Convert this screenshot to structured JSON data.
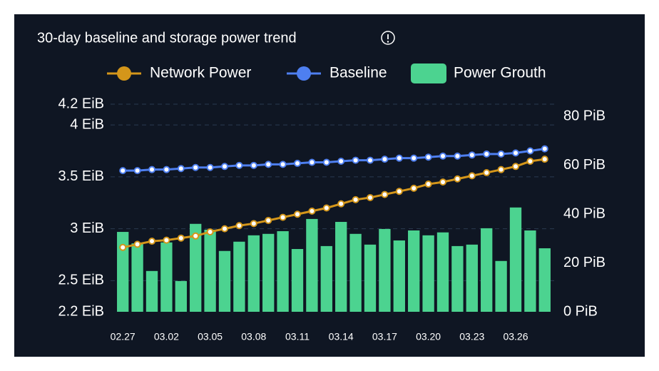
{
  "chart_data": {
    "type": "combo",
    "title": "30-day baseline and storage power trend",
    "categories": [
      "02.27",
      null,
      null,
      "03.02",
      null,
      null,
      "03.05",
      null,
      null,
      "03.08",
      null,
      null,
      "03.11",
      null,
      null,
      "03.14",
      null,
      null,
      "03.17",
      null,
      null,
      "03.20",
      null,
      null,
      "03.23",
      null,
      null,
      "03.26",
      null,
      null
    ],
    "series": [
      {
        "name": "Network Power",
        "type": "line",
        "color": "#d4961a",
        "axis": "y",
        "values": [
          2.82,
          2.85,
          2.88,
          2.89,
          2.91,
          2.93,
          2.97,
          3.0,
          3.03,
          3.05,
          3.08,
          3.11,
          3.14,
          3.17,
          3.2,
          3.24,
          3.28,
          3.3,
          3.33,
          3.36,
          3.39,
          3.43,
          3.45,
          3.48,
          3.51,
          3.54,
          3.57,
          3.6,
          3.65,
          3.67
        ]
      },
      {
        "name": "Baseline",
        "type": "line",
        "color": "#4e7ff0",
        "axis": "y",
        "values": [
          3.56,
          3.56,
          3.57,
          3.57,
          3.58,
          3.59,
          3.59,
          3.6,
          3.61,
          3.61,
          3.62,
          3.62,
          3.63,
          3.64,
          3.64,
          3.65,
          3.66,
          3.66,
          3.67,
          3.68,
          3.68,
          3.69,
          3.7,
          3.7,
          3.71,
          3.72,
          3.72,
          3.73,
          3.75,
          3.77
        ]
      },
      {
        "name": "Power Grouth",
        "type": "bar",
        "color": "#4cd390",
        "axis": "y2",
        "values": [
          32.7,
          28,
          16.7,
          28.4,
          12.6,
          36,
          33.6,
          24.9,
          28.7,
          31.3,
          31.9,
          33,
          25.7,
          38,
          26.9,
          36.8,
          31.9,
          27.5,
          33.9,
          29.2,
          33.3,
          31.3,
          32.5,
          26.9,
          27.5,
          34.2,
          20.8,
          42.7,
          33.3,
          26
        ]
      }
    ],
    "ylim": [
      2.2,
      4.2
    ],
    "yticks": [
      {
        "value": 2.2,
        "label": "2.2 EiB"
      },
      {
        "value": 2.5,
        "label": "2.5 EiB"
      },
      {
        "value": 3,
        "label": "3 EiB"
      },
      {
        "value": 3.5,
        "label": "3.5 EiB"
      },
      {
        "value": 4,
        "label": "4 EiB"
      },
      {
        "value": 4.2,
        "label": "4.2 EiB"
      }
    ],
    "y2lim": [
      0,
      85
    ],
    "y2ticks": [
      {
        "value": 0,
        "label": "0 PiB"
      },
      {
        "value": 20,
        "label": "20 PiB"
      },
      {
        "value": 40,
        "label": "40 PiB"
      },
      {
        "value": 60,
        "label": "60 PiB"
      },
      {
        "value": 80,
        "label": "80 PiB"
      }
    ],
    "grid": true
  }
}
